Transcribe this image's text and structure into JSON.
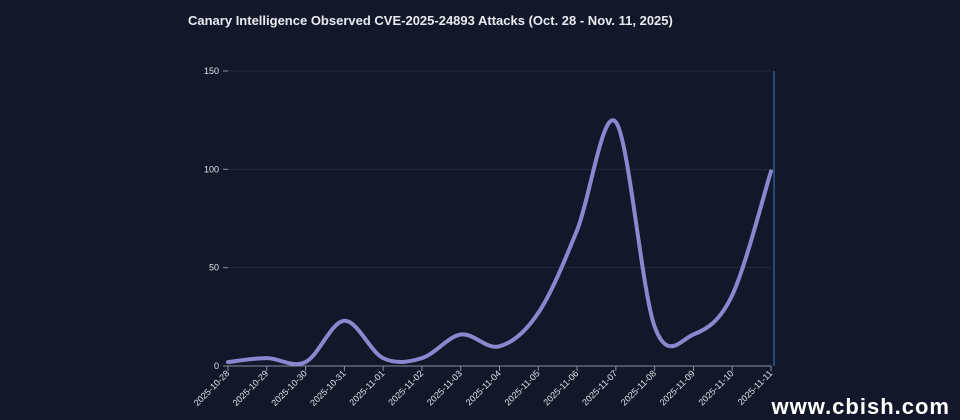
{
  "chart_data": {
    "type": "line",
    "title": "Canary Intelligence Observed CVE-2025-24893 Attacks (Oct. 28 - Nov. 11, 2025)",
    "xlabel": "",
    "ylabel": "",
    "categories": [
      "2025-10-28",
      "2025-10-29",
      "2025-10-30",
      "2025-10-31",
      "2025-11-01",
      "2025-11-02",
      "2025-11-03",
      "2025-11-04",
      "2025-11-05",
      "2025-11-06",
      "2025-11-07",
      "2025-11-08",
      "2025-11-09",
      "2025-11-10",
      "2025-11-11"
    ],
    "series": [
      {
        "name": "Attacks",
        "values": [
          2,
          4,
          2,
          23,
          4,
          4,
          16,
          10,
          27,
          69,
          124,
          20,
          16,
          36,
          99
        ]
      }
    ],
    "ylim": [
      0,
      150
    ],
    "yticks": [
      0,
      50,
      100,
      150
    ],
    "grid": true,
    "line_color": "#8b87cf"
  },
  "watermark": "www.cbish.com"
}
